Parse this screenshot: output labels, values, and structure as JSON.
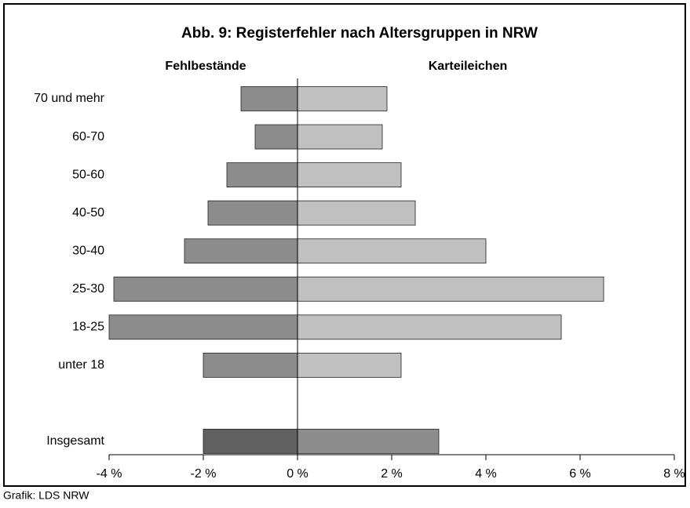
{
  "chart_data": {
    "type": "bar",
    "orientation": "horizontal",
    "title": "Abb. 9: Registerfehler nach Altersgruppen in NRW",
    "categories": [
      "70 und mehr",
      "60-70",
      "50-60",
      "40-50",
      "30-40",
      "25-30",
      "18-25",
      "unter 18",
      null,
      "Insgesamt"
    ],
    "series": [
      {
        "name": "Fehlbestände",
        "color": "#8c8c8c",
        "colors": [
          "#8c8c8c",
          "#8c8c8c",
          "#8c8c8c",
          "#8c8c8c",
          "#8c8c8c",
          "#8c8c8c",
          "#8c8c8c",
          "#8c8c8c",
          "#8c8c8c",
          "#606060"
        ],
        "values": [
          -1.2,
          -0.9,
          -1.5,
          -1.9,
          -2.4,
          -3.9,
          -4.0,
          -2.0,
          null,
          -2.0
        ]
      },
      {
        "name": "Karteileichen",
        "color": "#c0c0c0",
        "colors": [
          "#c0c0c0",
          "#c0c0c0",
          "#c0c0c0",
          "#c0c0c0",
          "#c0c0c0",
          "#c0c0c0",
          "#c0c0c0",
          "#c0c0c0",
          "#c0c0c0",
          "#8c8c8c"
        ],
        "values": [
          1.9,
          1.8,
          2.2,
          2.5,
          4.0,
          6.5,
          5.6,
          2.2,
          null,
          3.0
        ]
      }
    ],
    "xlim": [
      -4,
      8
    ],
    "xticks": [
      {
        "value": -4,
        "label": "-4 %"
      },
      {
        "value": -2,
        "label": "-2 %"
      },
      {
        "value": 0,
        "label": "0 %"
      },
      {
        "value": 2,
        "label": "2 %"
      },
      {
        "value": 4,
        "label": "4 %"
      },
      {
        "value": 6,
        "label": "6 %"
      },
      {
        "value": 8,
        "label": "8 %"
      }
    ],
    "source": "Grafik: LDS NRW"
  }
}
